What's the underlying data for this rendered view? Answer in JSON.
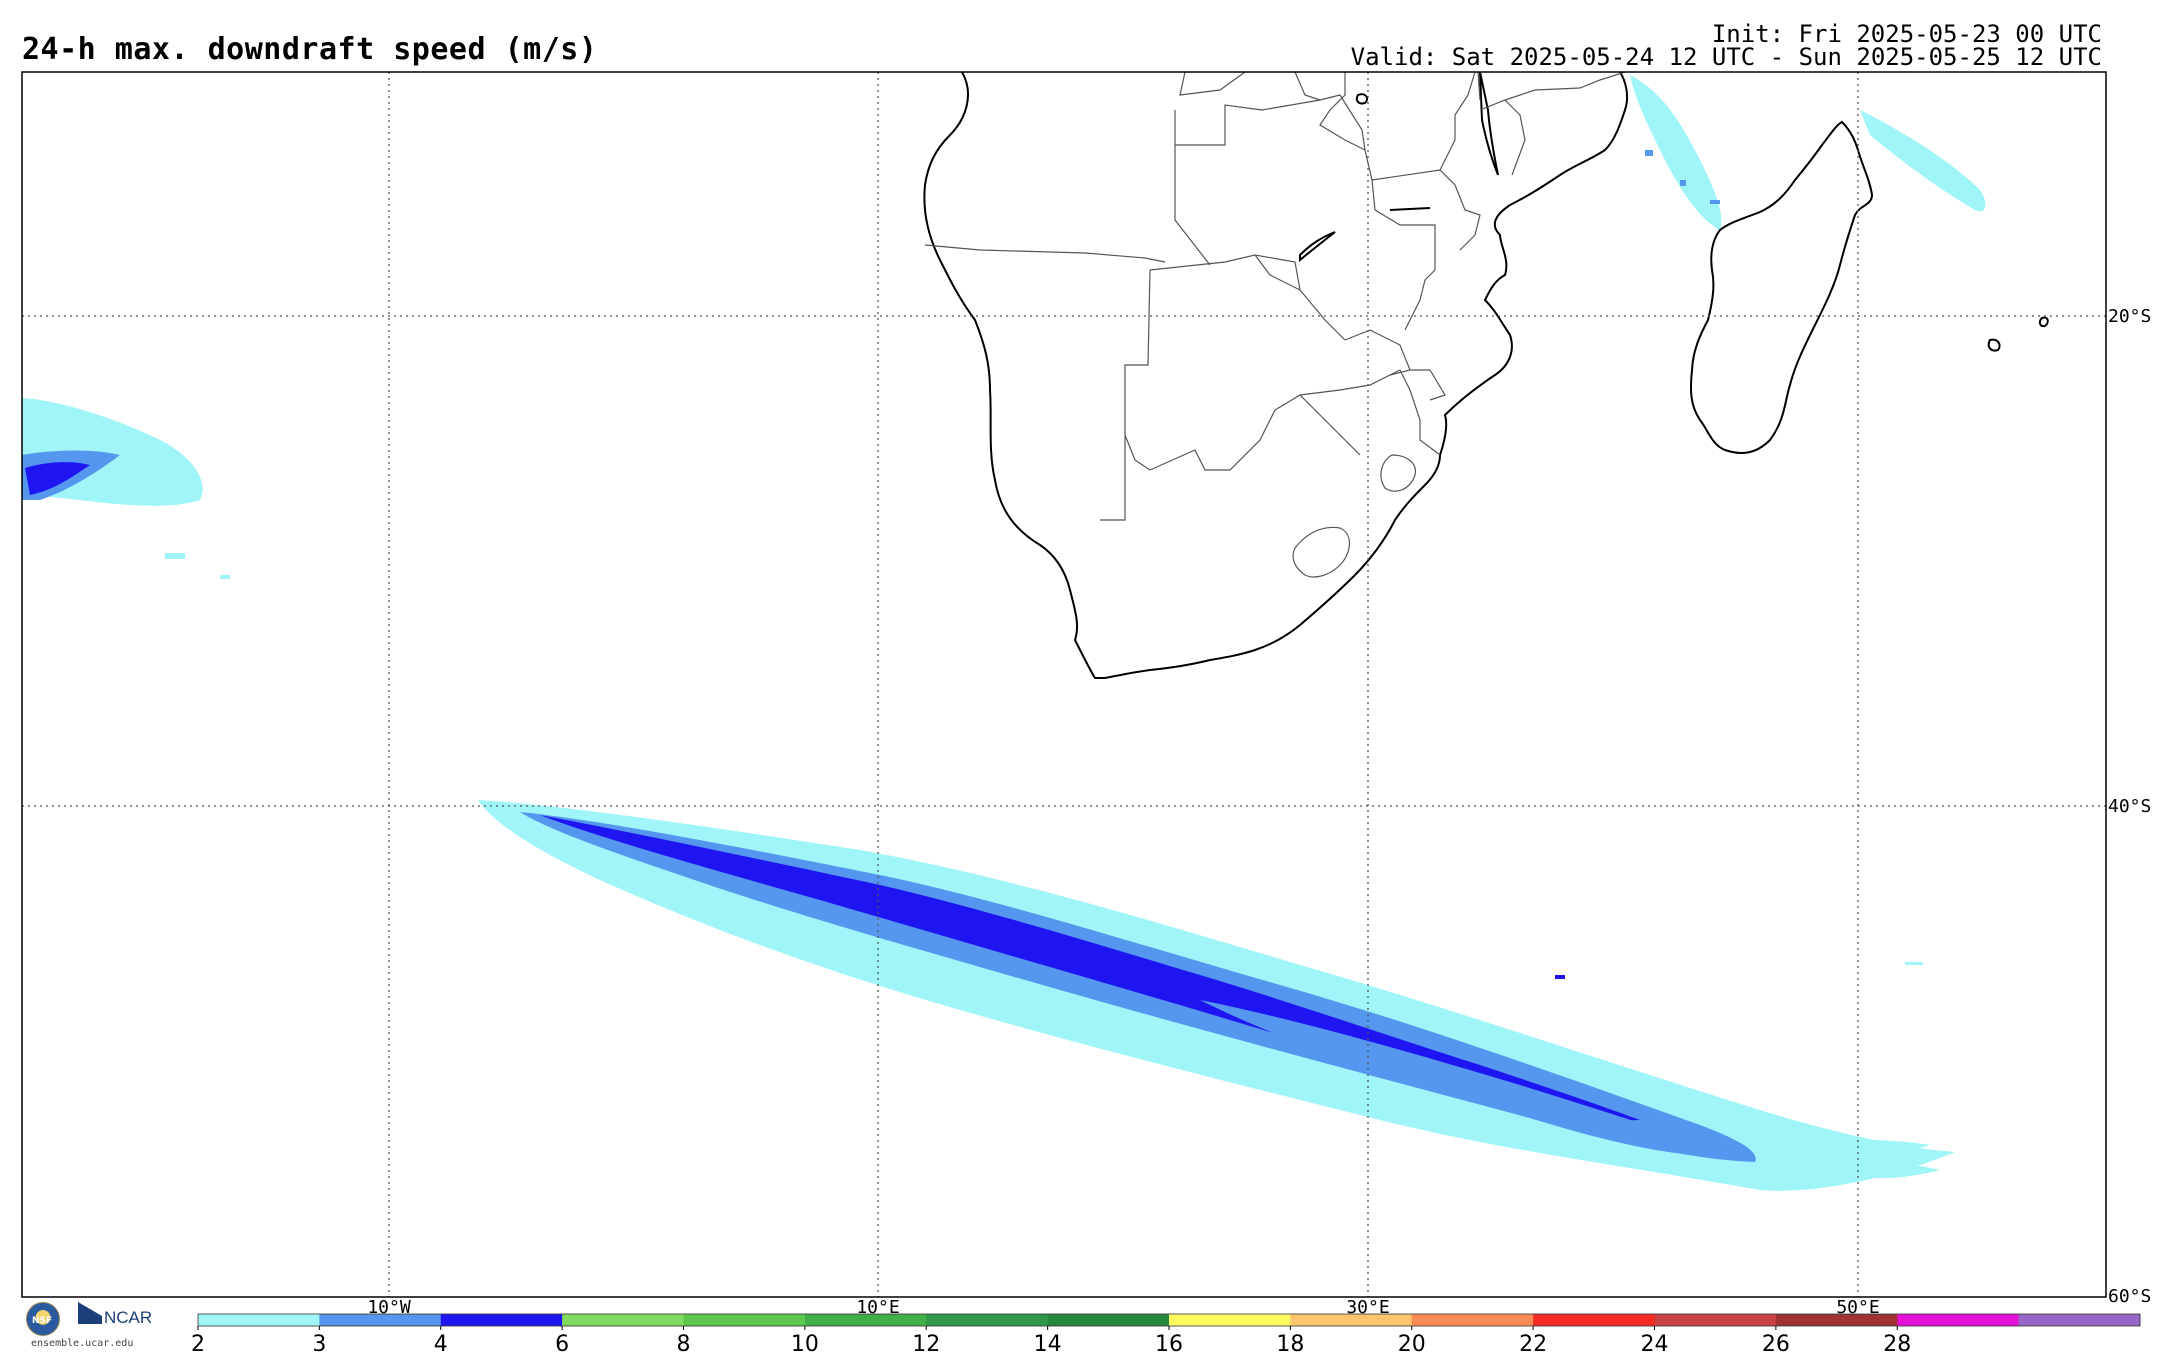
{
  "header": {
    "title": "24-h max. downdraft speed (m/s)",
    "init": "Init: Fri 2025-05-23 00 UTC",
    "valid": "Valid: Sat 2025-05-24 12 UTC - Sun 2025-05-25 12 UTC"
  },
  "map": {
    "lon_labels": [
      "10°W",
      "10°E",
      "30°E",
      "50°E"
    ],
    "lat_labels": [
      "20°S",
      "40°S",
      "60°S"
    ],
    "colors": {
      "coast": "#000000",
      "border": "#555555",
      "grid": "#555555"
    }
  },
  "colorbar": {
    "ticks": [
      "2",
      "3",
      "4",
      "6",
      "8",
      "10",
      "12",
      "14",
      "16",
      "18",
      "20",
      "22",
      "24",
      "26",
      "28"
    ],
    "colors": [
      "#9ff5f7",
      "#5597ef",
      "#1e15f0",
      "#7fdc5e",
      "#5cc84d",
      "#3fb048",
      "#2e9a47",
      "#27873f",
      "#fefb63",
      "#fcc46c",
      "#fc8a56",
      "#f42c25",
      "#cc4142",
      "#a13232",
      "#e410d6",
      "#9866c8"
    ]
  },
  "logos": {
    "nsf": "NSF",
    "ncar": "NCAR",
    "site": "ensemble.ucar.edu"
  }
}
